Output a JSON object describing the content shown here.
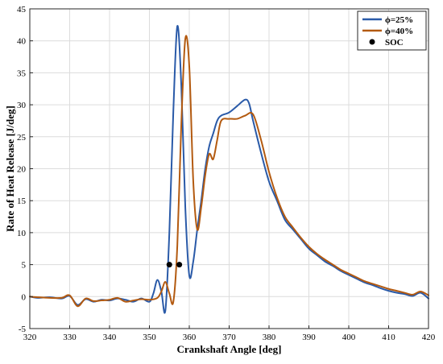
{
  "chart_data": {
    "type": "line",
    "xlabel": "Crankshaft Angle [deg]",
    "ylabel": "Rate of Heat Release [J/deg]",
    "xlim": [
      320,
      420
    ],
    "ylim": [
      -5,
      45
    ],
    "x_ticks": [
      "320",
      "330",
      "340",
      "350",
      "360",
      "370",
      "380",
      "390",
      "400",
      "410",
      "420"
    ],
    "y_ticks": [
      "-5",
      "0",
      "5",
      "10",
      "15",
      "20",
      "25",
      "30",
      "35",
      "40",
      "45"
    ],
    "grid": true,
    "legend_position": "top-right",
    "series": [
      {
        "name": "ϕ=25%",
        "color": "#2a5aa8",
        "x": [
          320,
          322,
          325,
          328,
          330,
          332,
          334,
          336,
          338,
          340,
          342,
          344,
          346,
          348,
          350,
          351,
          352,
          353,
          354,
          355,
          356,
          357,
          358,
          359,
          360,
          361,
          362,
          363,
          364,
          365,
          366,
          367,
          368,
          370,
          372,
          374,
          375,
          376,
          378,
          380,
          382,
          384,
          386,
          388,
          390,
          392,
          394,
          396,
          398,
          400,
          402,
          404,
          406,
          408,
          410,
          412,
          414,
          416,
          418,
          420
        ],
        "y": [
          0,
          -0.2,
          -0.1,
          -0.3,
          0.1,
          -1.3,
          -0.4,
          -0.8,
          -0.5,
          -0.6,
          -0.3,
          -0.5,
          -0.8,
          -0.3,
          -0.8,
          0.5,
          2.6,
          0.8,
          -2.2,
          10,
          29,
          42.3,
          33,
          14,
          3.3,
          5.5,
          10.5,
          15,
          20,
          23.5,
          25.5,
          27.5,
          28.3,
          28.8,
          29.8,
          30.8,
          30.2,
          27.5,
          22.5,
          18,
          15,
          12,
          10.5,
          9,
          7.5,
          6.5,
          5.5,
          4.8,
          4,
          3.4,
          2.8,
          2.2,
          1.8,
          1.3,
          0.9,
          0.6,
          0.4,
          0.1,
          0.6,
          -0.3
        ]
      },
      {
        "name": "ϕ=40%",
        "color": "#b35a10",
        "x": [
          320,
          322,
          325,
          328,
          330,
          332,
          334,
          336,
          338,
          340,
          342,
          344,
          346,
          348,
          350,
          352,
          353,
          354,
          355,
          356,
          357,
          358,
          359,
          360,
          361,
          362,
          363,
          364,
          365,
          366,
          367,
          368,
          370,
          372,
          374,
          376,
          378,
          380,
          382,
          384,
          386,
          388,
          390,
          392,
          394,
          396,
          398,
          400,
          402,
          404,
          406,
          408,
          410,
          412,
          414,
          416,
          418,
          420
        ],
        "y": [
          0,
          -0.1,
          -0.2,
          -0.2,
          0.2,
          -1.5,
          -0.3,
          -0.7,
          -0.6,
          -0.5,
          -0.2,
          -0.8,
          -0.6,
          -0.4,
          -0.5,
          -0.2,
          0.8,
          2.3,
          0.5,
          -0.8,
          8,
          27,
          40.3,
          36,
          18,
          10.5,
          14,
          19,
          22.3,
          21.5,
          24.5,
          27.5,
          27.8,
          27.8,
          28.3,
          28.5,
          24.5,
          19.5,
          15.5,
          12.5,
          10.8,
          9.2,
          7.8,
          6.7,
          5.8,
          5,
          4.2,
          3.6,
          3,
          2.4,
          2,
          1.6,
          1.2,
          0.9,
          0.6,
          0.3,
          0.8,
          0.2
        ]
      }
    ],
    "soc_points": {
      "name": "SOC",
      "color": "#000000",
      "x": [
        355,
        357.5
      ],
      "y": [
        5,
        5
      ]
    }
  }
}
